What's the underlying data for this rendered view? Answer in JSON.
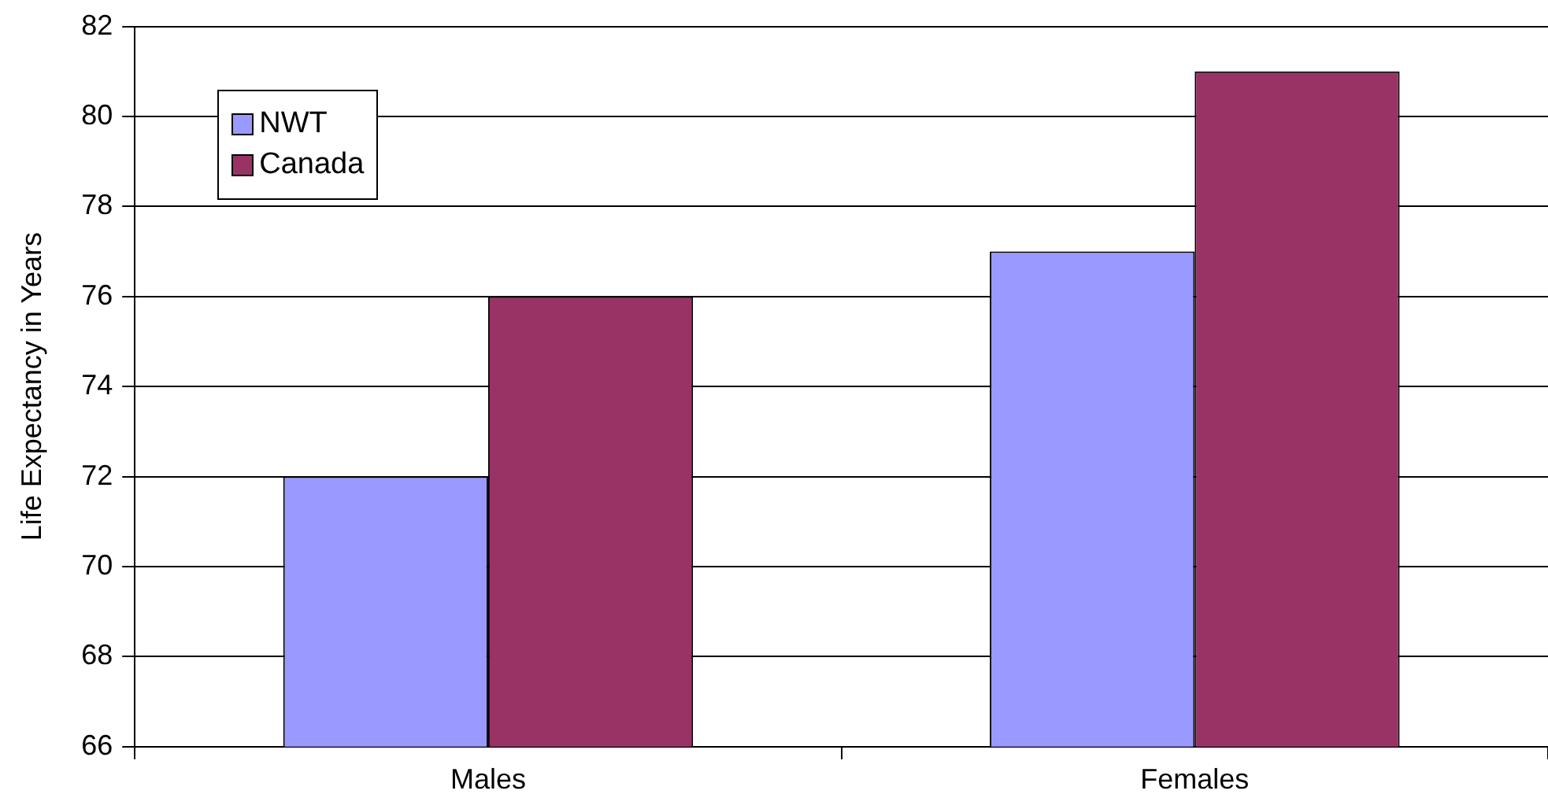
{
  "chart_data": {
    "type": "bar",
    "ylabel": "Life Expectancy in Years",
    "categories": [
      "Males",
      "Females"
    ],
    "series": [
      {
        "name": "NWT",
        "color": "#9999ff",
        "values": [
          72,
          77
        ]
      },
      {
        "name": "Canada",
        "color": "#993366",
        "values": [
          76,
          81
        ]
      }
    ],
    "ylim": [
      66,
      82
    ],
    "yticks": [
      66,
      68,
      70,
      72,
      74,
      76,
      78,
      80,
      82
    ],
    "grid": "y",
    "legend": "top left"
  }
}
